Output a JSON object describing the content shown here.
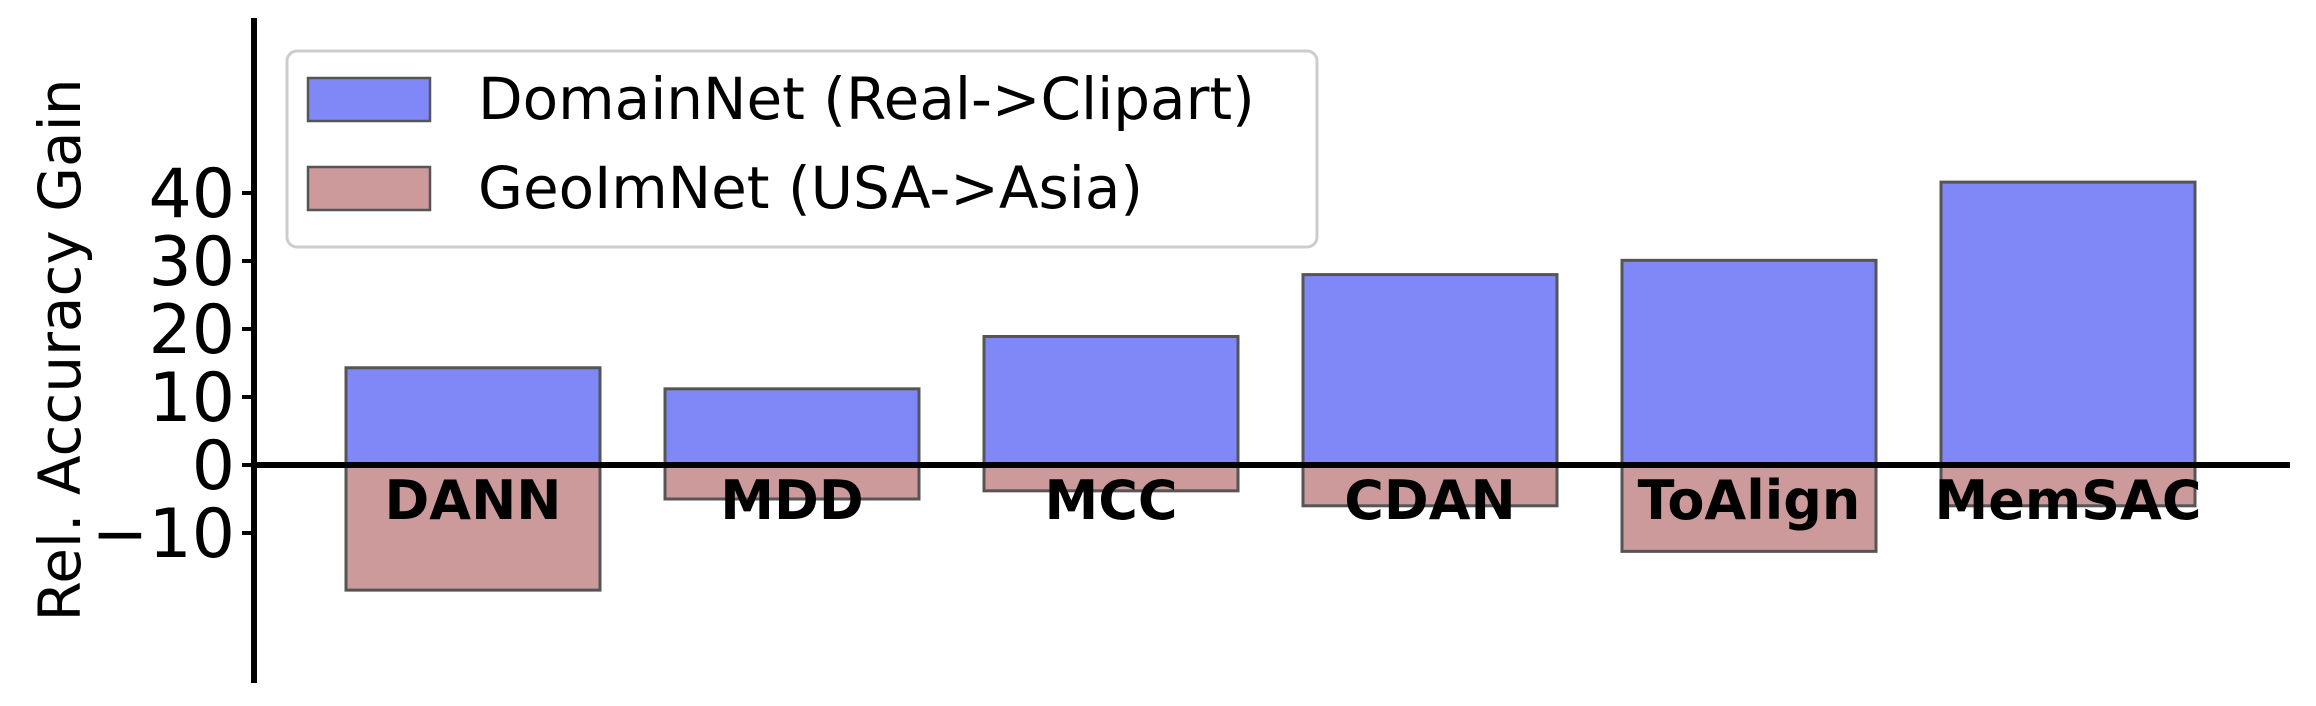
{
  "chart_data": {
    "type": "bar",
    "title": "",
    "xlabel": "",
    "ylabel": "Rel. Accuracy Gain",
    "ylim": [
      -21,
      45
    ],
    "yticks": [
      -10,
      0,
      10,
      20,
      30,
      40
    ],
    "ytick_labels": [
      "−10",
      "0",
      "10",
      "20",
      "30",
      "40"
    ],
    "categories": [
      "DANN",
      "MDD",
      "MCC",
      "CDAN",
      "ToAlign",
      "MemSAC"
    ],
    "series": [
      {
        "name": "DomainNet (Real->Clipart)",
        "color": "#8088f7",
        "values": [
          14.3,
          11.2,
          18.9,
          28.0,
          30.1,
          41.6
        ]
      },
      {
        "name": "GeoImNet (USA->Asia)",
        "color": "#cc9a9a",
        "values": [
          -18.4,
          -5.0,
          -3.8,
          -6.0,
          -12.7,
          -6.0
        ]
      }
    ],
    "legend_position": "top-left",
    "grid": false
  }
}
